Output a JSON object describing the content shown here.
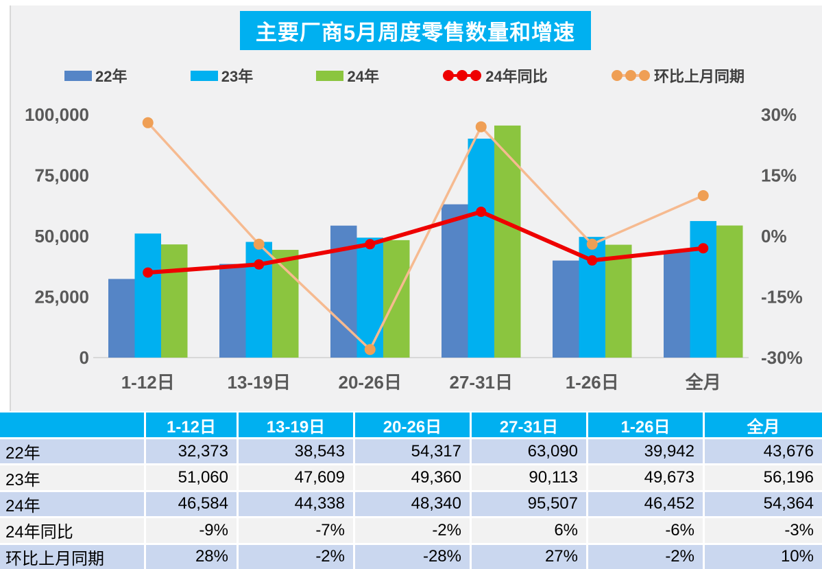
{
  "title": {
    "text": "主要厂商5月周度零售数量和增速",
    "bg_color": "#00B0F0",
    "text_color": "#FFFFFF"
  },
  "legend": {
    "items": [
      {
        "label": "22年",
        "type": "bar",
        "color": "#5585C6"
      },
      {
        "label": "23年",
        "type": "bar",
        "color": "#00B0F0"
      },
      {
        "label": "24年",
        "type": "bar",
        "color": "#8BC53F"
      },
      {
        "label": "24年同比",
        "type": "line",
        "color": "#EE0000",
        "marker_color": "#EE0000"
      },
      {
        "label": "环比上月同期",
        "type": "line",
        "color": "#F6BA90",
        "marker_color": "#EF9F55"
      }
    ]
  },
  "chart_data": {
    "type": "bar+line",
    "title": "主要厂商5月周度零售数量和增速",
    "categories": [
      "1-12日",
      "13-19日",
      "20-26日",
      "27-31日",
      "1-26日",
      "全月"
    ],
    "bar_series": [
      {
        "name": "22年",
        "color": "#5585C6",
        "values": [
          32373,
          38543,
          54317,
          63090,
          39942,
          43676
        ]
      },
      {
        "name": "23年",
        "color": "#00B0F0",
        "values": [
          51060,
          47609,
          49360,
          90113,
          49673,
          56196
        ]
      },
      {
        "name": "24年",
        "color": "#8BC53F",
        "values": [
          46584,
          44338,
          48340,
          95507,
          46452,
          54364
        ]
      }
    ],
    "line_series": [
      {
        "name": "24年同比",
        "axis": "right",
        "color": "#EE0000",
        "marker_color": "#EE0000",
        "stroke_width": 6,
        "marker_r": 7.5,
        "values_pct": [
          -9,
          -7,
          -2,
          6,
          -6,
          -3
        ]
      },
      {
        "name": "环比上月同期",
        "axis": "right",
        "color": "#F6BA90",
        "marker_color": "#EF9F55",
        "stroke_width": 3.5,
        "marker_r": 8,
        "values_pct": [
          28,
          -2,
          -28,
          27,
          -2,
          10
        ]
      }
    ],
    "left_axis": {
      "range": [
        0,
        100000
      ],
      "ticks": [
        100000,
        75000,
        50000,
        25000,
        0
      ],
      "tick_labels": [
        "100,000",
        "75,000",
        "50,000",
        "25,000",
        "0"
      ]
    },
    "right_axis": {
      "range_pct": [
        -30,
        30
      ],
      "ticks_pct": [
        30,
        15,
        0,
        -15,
        -30
      ],
      "tick_labels": [
        "30%",
        "15%",
        "0%",
        "-15%",
        "-30%"
      ]
    },
    "grid": false,
    "legend_position": "top",
    "axis_text_color": "#595959"
  },
  "table": {
    "header": [
      "",
      "1-12日",
      "13-19日",
      "20-26日",
      "27-31日",
      "1-26日",
      "全月"
    ],
    "rows": [
      {
        "label": "22年",
        "values": [
          "32,373",
          "38,543",
          "54,317",
          "63,090",
          "39,942",
          "43,676"
        ]
      },
      {
        "label": "23年",
        "values": [
          "51,060",
          "47,609",
          "49,360",
          "90,113",
          "49,673",
          "56,196"
        ]
      },
      {
        "label": "24年",
        "values": [
          "46,584",
          "44,338",
          "48,340",
          "95,507",
          "46,452",
          "54,364"
        ]
      },
      {
        "label": "24年同比",
        "values": [
          "-9%",
          "-7%",
          "-2%",
          "6%",
          "-6%",
          "-3%"
        ]
      },
      {
        "label": "环比上月同期",
        "values": [
          "28%",
          "-2%",
          "-28%",
          "27%",
          "-2%",
          "10%"
        ]
      }
    ],
    "header_bg": "#00B0F0",
    "row_bg_odd": "#CAD7EF",
    "row_bg_even": "#F2F2F2"
  }
}
